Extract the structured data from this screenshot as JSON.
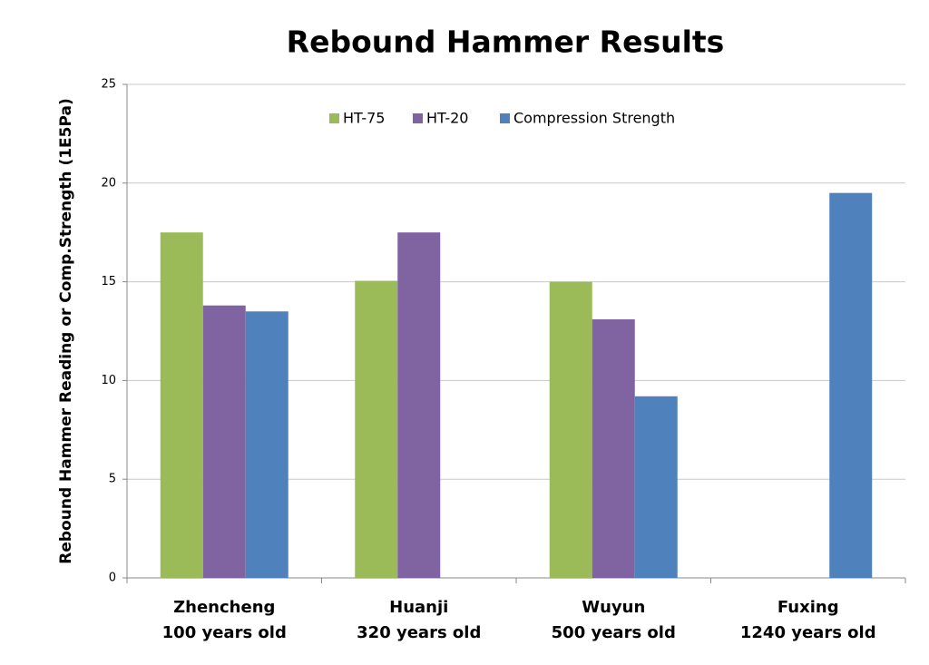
{
  "chart_data": {
    "type": "bar",
    "title": "Rebound Hammer Results",
    "y_label": "Rebound Hammer Reading or Comp.Strength (1E5Pa)",
    "categories": [
      [
        "Zhencheng",
        "100 years old"
      ],
      [
        "Huanji",
        "320 years old"
      ],
      [
        "Wuyun",
        "500 years old"
      ],
      [
        "Fuxing",
        "1240 years old"
      ]
    ],
    "series": [
      {
        "name": "HT-75",
        "color": "#9bbb59",
        "values": [
          17.5,
          15.05,
          15.0,
          null
        ]
      },
      {
        "name": "HT-20",
        "color": "#8064a2",
        "values": [
          13.8,
          17.5,
          13.1,
          null
        ]
      },
      {
        "name": "Compression Strength",
        "color": "#4f81bd",
        "values": [
          13.5,
          null,
          9.2,
          19.5
        ]
      }
    ],
    "ylim": [
      0,
      25
    ],
    "yticks": [
      0,
      5,
      10,
      15,
      20,
      25
    ],
    "grid": true,
    "legend": "top"
  }
}
